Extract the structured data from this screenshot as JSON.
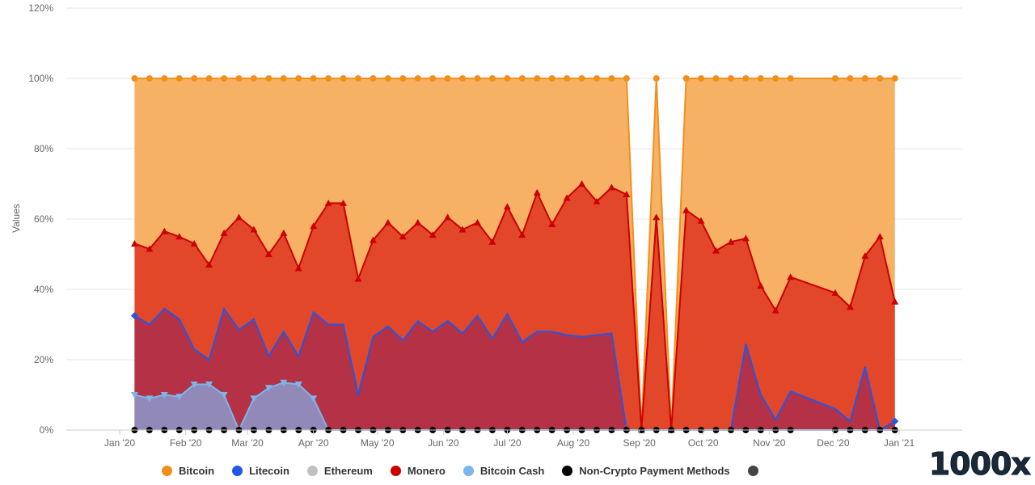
{
  "chart_data": {
    "type": "area",
    "stacking": "percent",
    "ylabel": "Values",
    "xlabel": "",
    "ylim": [
      0,
      120
    ],
    "yticks": [
      "0%",
      "20%",
      "40%",
      "60%",
      "80%",
      "100%",
      "120%"
    ],
    "xticks": [
      "Jan '20",
      "Feb '20",
      "Mar '20",
      "Apr '20",
      "May '20",
      "Jun '20",
      "Jul '20",
      "Aug '20",
      "Sep '20",
      "Oct '20",
      "Nov '20",
      "Dec '20",
      "Jan '21"
    ],
    "grid": true,
    "legend_position": "bottom",
    "x": [
      "2020-01-08",
      "2020-01-15",
      "2020-01-22",
      "2020-01-29",
      "2020-02-05",
      "2020-02-12",
      "2020-02-19",
      "2020-02-26",
      "2020-03-04",
      "2020-03-11",
      "2020-03-18",
      "2020-03-25",
      "2020-04-01",
      "2020-04-08",
      "2020-04-15",
      "2020-04-22",
      "2020-04-29",
      "2020-05-06",
      "2020-05-13",
      "2020-05-20",
      "2020-05-27",
      "2020-06-03",
      "2020-06-10",
      "2020-06-17",
      "2020-06-24",
      "2020-07-01",
      "2020-07-08",
      "2020-07-15",
      "2020-07-22",
      "2020-07-29",
      "2020-08-05",
      "2020-08-12",
      "2020-08-19",
      "2020-08-26",
      "2020-09-02",
      "2020-09-09",
      "2020-09-16",
      "2020-09-23",
      "2020-09-30",
      "2020-10-07",
      "2020-10-14",
      "2020-10-21",
      "2020-10-28",
      "2020-11-04",
      "2020-11-11",
      "2020-12-02",
      "2020-12-09",
      "2020-12-16",
      "2020-12-23",
      "2020-12-30"
    ],
    "series": [
      {
        "name": "Bitcoin",
        "color": "#f28f1c",
        "fill": "#f7ad5d",
        "marker": "circle",
        "values": [
          100,
          100,
          100,
          100,
          100,
          100,
          100,
          100,
          100,
          100,
          100,
          100,
          100,
          100,
          100,
          100,
          100,
          100,
          100,
          100,
          100,
          100,
          100,
          100,
          100,
          100,
          100,
          100,
          100,
          100,
          100,
          100,
          100,
          100,
          0,
          100,
          0,
          100,
          100,
          100,
          100,
          100,
          100,
          100,
          100,
          100,
          100,
          100,
          100,
          100
        ]
      },
      {
        "name": "Monero",
        "color": "#cc0000",
        "fill": "#e04126",
        "marker": "triangle",
        "values": [
          53,
          51.5,
          56.5,
          55,
          53,
          47,
          56,
          60.5,
          57,
          50,
          56,
          46,
          58,
          64.5,
          64.5,
          43,
          54,
          59,
          55,
          59,
          55.5,
          60.5,
          57,
          59,
          53.5,
          63.5,
          55.5,
          67.5,
          58.5,
          66,
          70,
          65,
          69,
          67,
          0,
          60.5,
          0,
          62.5,
          59.5,
          51,
          53.5,
          54.5,
          41,
          34,
          43.5,
          39,
          35,
          49.5,
          55,
          36.5
        ]
      },
      {
        "name": "Litecoin",
        "color": "#2457e6",
        "fill": "#b23048",
        "marker": "diamond",
        "values": [
          32.5,
          30,
          34.5,
          31.5,
          23,
          20,
          34.5,
          28.5,
          31.5,
          21,
          28,
          21,
          33.5,
          30,
          30,
          10,
          26.5,
          29.5,
          25.5,
          31,
          28,
          31,
          27.5,
          32.5,
          26,
          33,
          25,
          28,
          28,
          27,
          26.5,
          27,
          27.5,
          0,
          0,
          0,
          0,
          0,
          0,
          0,
          0,
          24.5,
          10,
          3,
          11,
          6,
          2.5,
          18,
          0,
          2.5
        ]
      },
      {
        "name": "Bitcoin Cash",
        "color": "#7cb5ec",
        "fill": "#8f8fbf",
        "marker": "triangle-down",
        "values": [
          10,
          9,
          10,
          9.5,
          13,
          13,
          10,
          0,
          9,
          12,
          13.5,
          13,
          9,
          0,
          0,
          0,
          0,
          0,
          0,
          0,
          0,
          0,
          0,
          0,
          0,
          0,
          0,
          0,
          0,
          0,
          0,
          0,
          0,
          0,
          0,
          0,
          0,
          0,
          0,
          0,
          0,
          0,
          0,
          0,
          0,
          0,
          0,
          0,
          0,
          0
        ]
      },
      {
        "name": "Ethereum",
        "color": "#c0c0c0",
        "fill": "#d0d0d0",
        "marker": "none",
        "values": [
          0,
          0,
          0,
          0,
          0,
          0,
          0,
          0,
          0,
          0,
          0,
          0,
          0,
          0,
          0,
          0,
          0,
          0,
          0,
          0,
          0,
          0,
          0,
          0,
          0,
          0,
          0,
          0,
          0,
          0,
          0,
          0,
          0,
          0,
          0,
          0,
          0,
          0,
          0,
          0,
          0,
          0,
          0,
          0,
          0,
          0,
          0,
          0,
          0,
          0
        ]
      },
      {
        "name": "Non-Crypto Payment Methods",
        "color": "#000000",
        "fill": "#000000",
        "marker": "circle",
        "values": [
          0,
          0,
          0,
          0,
          0,
          0,
          0,
          0,
          0,
          0,
          0,
          0,
          0,
          0,
          0,
          0,
          0,
          0,
          0,
          0,
          0,
          0,
          0,
          0,
          0,
          0,
          0,
          0,
          0,
          0,
          0,
          0,
          0,
          0,
          0,
          0,
          0,
          0,
          0,
          0,
          0,
          0,
          0,
          0,
          0,
          0,
          0,
          0,
          0,
          0
        ]
      }
    ]
  },
  "legend": {
    "items": [
      {
        "label": "Bitcoin",
        "color": "#f28f1c"
      },
      {
        "label": "Litecoin",
        "color": "#2457e6"
      },
      {
        "label": "Ethereum",
        "color": "#c0c0c0"
      },
      {
        "label": "Monero",
        "color": "#cc0000"
      },
      {
        "label": "Bitcoin Cash",
        "color": "#7cb5ec"
      },
      {
        "label": "Non-Crypto Payment Methods",
        "color": "#000000"
      }
    ],
    "extra_color": "#434348"
  },
  "brand": {
    "text": "1000x"
  }
}
